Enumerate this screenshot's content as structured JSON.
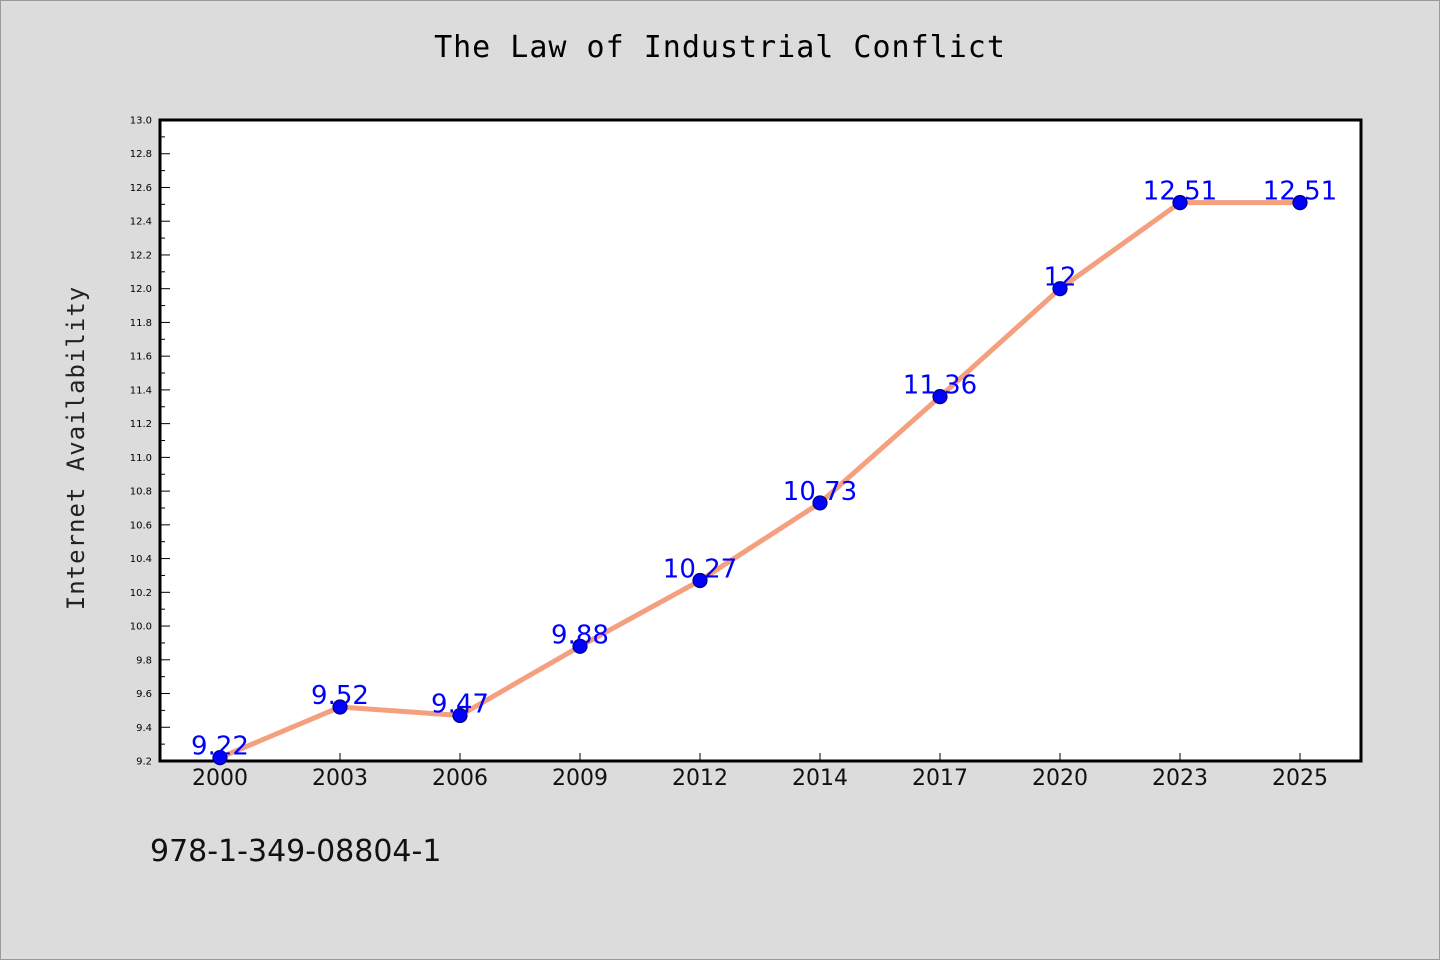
{
  "chart_data": {
    "type": "line",
    "title": "The Law of Industrial Conflict",
    "xlabel": "",
    "ylabel": "Internet Availability",
    "categories": [
      "2000",
      "2003",
      "2006",
      "2009",
      "2012",
      "2014",
      "2017",
      "2020",
      "2023",
      "2025"
    ],
    "values": [
      9.22,
      9.52,
      9.47,
      9.88,
      10.27,
      10.73,
      11.36,
      12,
      12.51,
      12.51
    ],
    "data_labels": [
      "9.22",
      "9.52",
      "9.47",
      "9.88",
      "10.27",
      "10.73",
      "11.36",
      "12",
      "12.51",
      "12.51"
    ],
    "ylim": [
      9.2,
      13.0
    ],
    "y_ticks": [
      "9.2",
      "9.4",
      "9.6",
      "9.8",
      "10.0",
      "10.2",
      "10.4",
      "10.6",
      "10.8",
      "11.0",
      "11.2",
      "11.4",
      "11.6",
      "11.8",
      "12.0",
      "12.2",
      "12.4",
      "12.6",
      "12.8",
      "13.0"
    ],
    "grid": false,
    "line_color": "#f4a07f",
    "marker_color": "#0000ff",
    "label_color": "#0000ff"
  },
  "footer": {
    "isbn": "978-1-349-08804-1"
  }
}
